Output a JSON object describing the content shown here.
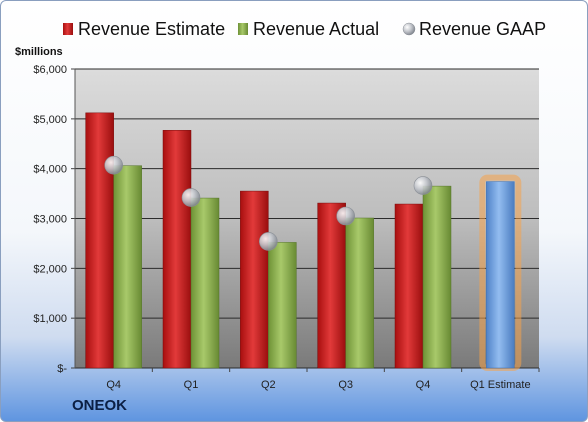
{
  "company": "ONEOK",
  "chart_data": {
    "type": "bar",
    "unit_label": "$millions",
    "categories": [
      "Q4",
      "Q1",
      "Q2",
      "Q3",
      "Q4",
      "Q1 Estimate"
    ],
    "series": [
      {
        "name": "Revenue Estimate",
        "color": "#cc1f1f",
        "values": [
          5120,
          4770,
          3550,
          3310,
          3290,
          null
        ]
      },
      {
        "name": "Revenue Actual",
        "color": "#8ab04a",
        "values": [
          4060,
          3410,
          2520,
          3010,
          3650,
          null
        ]
      },
      {
        "name": "Revenue GAAP",
        "color": "#b8bcc4",
        "style": "marker",
        "values": [
          4070,
          3420,
          2540,
          3050,
          3660,
          null
        ]
      }
    ],
    "estimate_bar": {
      "category": "Q1 Estimate",
      "value": 3740,
      "color": "#6f9fd8",
      "glow": "#f6a34a"
    },
    "y_ticks": [
      0,
      1000,
      2000,
      3000,
      4000,
      5000,
      6000
    ],
    "y_tick_labels": [
      "$-",
      "$1,000",
      "$2,000",
      "$3,000",
      "$4,000",
      "$5,000",
      "$6,000"
    ],
    "ylim": [
      0,
      6000
    ],
    "grid": true,
    "legend_position": "top"
  }
}
